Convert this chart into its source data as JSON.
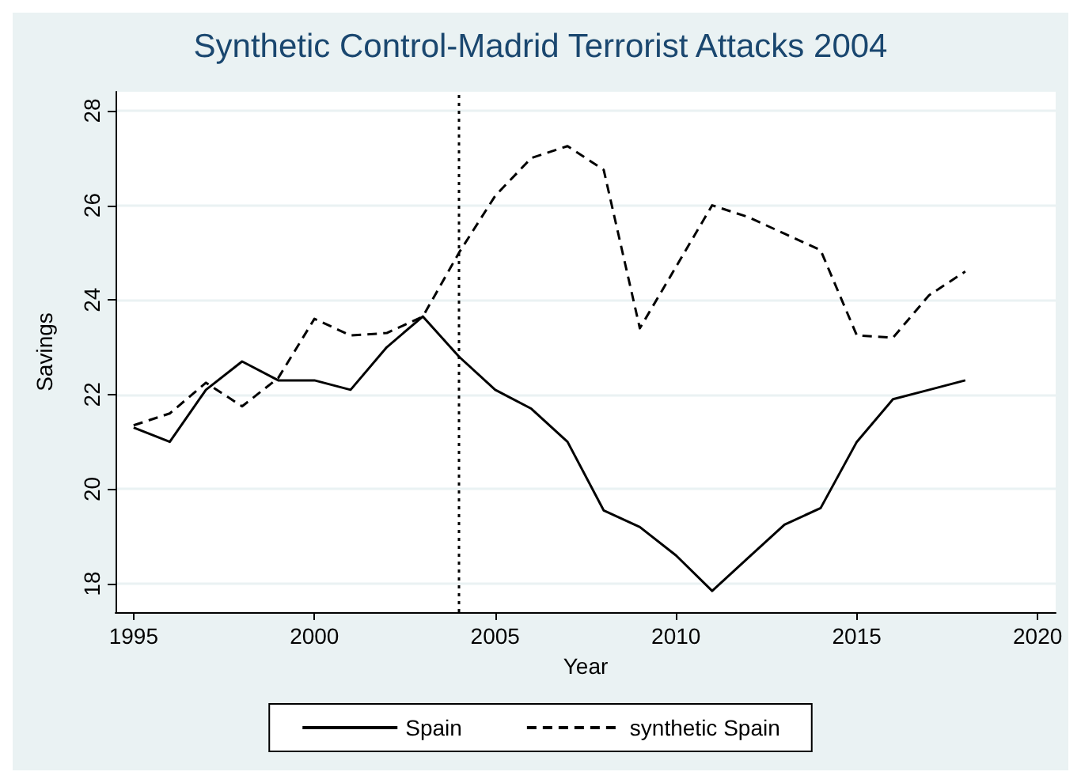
{
  "chart_data": {
    "type": "line",
    "title": "Synthetic Control-Madrid Terrorist Attacks 2004",
    "xlabel": "Year",
    "ylabel": "Savings",
    "x": [
      1995,
      1996,
      1997,
      1998,
      1999,
      2000,
      2001,
      2002,
      2003,
      2004,
      2005,
      2006,
      2007,
      2008,
      2009,
      2010,
      2011,
      2012,
      2013,
      2014,
      2015,
      2016,
      2017,
      2018
    ],
    "series": [
      {
        "name": "Spain",
        "color": "#000000",
        "line_style": "solid",
        "values": [
          21.3,
          21.0,
          22.1,
          22.7,
          22.3,
          22.3,
          22.1,
          23.0,
          23.65,
          22.8,
          22.1,
          21.7,
          21.0,
          19.55,
          19.2,
          18.6,
          17.85,
          18.55,
          19.25,
          19.6,
          21.0,
          21.9,
          22.1,
          22.3
        ]
      },
      {
        "name": "synthetic Spain",
        "color": "#000000",
        "line_style": "dashed",
        "values": [
          21.35,
          21.6,
          22.25,
          21.75,
          22.35,
          23.6,
          23.25,
          23.3,
          23.65,
          25.0,
          26.2,
          27.0,
          27.25,
          26.75,
          23.4,
          24.7,
          26.0,
          25.75,
          25.4,
          25.05,
          23.25,
          23.2,
          24.1,
          24.6
        ]
      }
    ],
    "xlim": [
      1994.5,
      2020.5
    ],
    "xticks": [
      1995,
      2000,
      2005,
      2010,
      2015,
      2020
    ],
    "ylim": [
      17.4,
      28.4
    ],
    "yticks": [
      18,
      20,
      22,
      24,
      26,
      28
    ],
    "ref_lines": [
      {
        "axis": "x",
        "value": 2004,
        "color": "#000000",
        "line_style": "dotted"
      }
    ],
    "grid": "y",
    "legend": "bottom",
    "marker": "none"
  }
}
